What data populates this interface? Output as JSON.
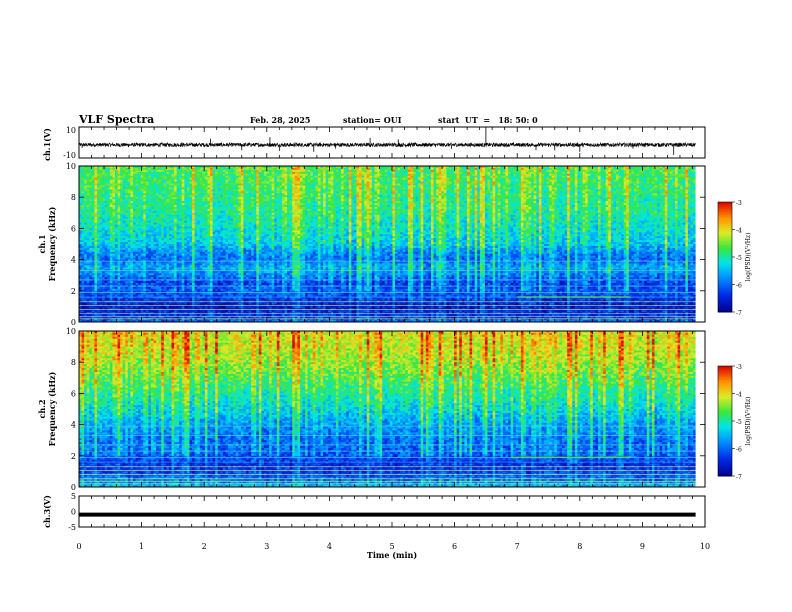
{
  "header": {
    "title": "VLF Spectra",
    "date": "Feb. 28, 2025",
    "station": "station= OUI",
    "start_ut": "start  UT  =   18: 50: 0"
  },
  "chart_data": [
    {
      "type": "line",
      "panel": "ch.1 waveform",
      "ylabel": "ch.1(V)",
      "yticks": [
        "10",
        "-10"
      ],
      "ylim": [
        -10,
        10
      ],
      "x_range_min": [
        0,
        9.85
      ],
      "series": [
        {
          "values": [
            -1.5
          ],
          "noise_amplitude_V": 2.5
        }
      ],
      "spikes": [
        {
          "t": 0.05,
          "v": -3.5
        },
        {
          "t": 2.1,
          "v": 2.5
        },
        {
          "t": 2.6,
          "v": -5
        },
        {
          "t": 3.05,
          "v": 3.5
        },
        {
          "t": 3.2,
          "v": -5.5
        },
        {
          "t": 3.75,
          "v": -6
        },
        {
          "t": 4.1,
          "v": -4
        },
        {
          "t": 4.65,
          "v": 3
        },
        {
          "t": 5.1,
          "v": 2
        },
        {
          "t": 5.95,
          "v": -4
        },
        {
          "t": 6.5,
          "v": 10
        },
        {
          "t": 7.3,
          "v": -5
        },
        {
          "t": 7.6,
          "v": -5
        },
        {
          "t": 8.0,
          "v": -6
        },
        {
          "t": 8.85,
          "v": -4
        },
        {
          "t": 9.5,
          "v": -8
        }
      ]
    },
    {
      "type": "heatmap",
      "panel": "ch.1 spectrogram",
      "ylabel_top": "ch.1",
      "ylabel": "Frequency (kHz)",
      "yticks": [
        "0",
        "2",
        "4",
        "6",
        "8",
        "10"
      ],
      "ylim_kHz": [
        0,
        10
      ],
      "x_range_min": [
        0,
        9.85
      ],
      "log_psd_profile": [
        [
          0,
          -6.0
        ],
        [
          0.3,
          -6.3
        ],
        [
          0.6,
          -6.4
        ],
        [
          1.0,
          -6.6
        ],
        [
          1.5,
          -6.3
        ],
        [
          2.0,
          -6.1
        ],
        [
          2.5,
          -6.3
        ],
        [
          3.0,
          -5.9
        ],
        [
          3.5,
          -5.6
        ],
        [
          4.0,
          -6.0
        ],
        [
          4.5,
          -5.8
        ],
        [
          5.0,
          -5.4
        ],
        [
          6.0,
          -5.2
        ],
        [
          7.0,
          -5.0
        ],
        [
          8.0,
          -4.9
        ],
        [
          9.0,
          -4.8
        ],
        [
          10.0,
          -4.7
        ]
      ],
      "colorbar": {
        "label": "log(PSD)(V²/Hz)",
        "ticks": [
          "-3",
          "-4",
          "-5",
          "-6",
          "-7"
        ],
        "range": [
          -7,
          -3
        ]
      }
    },
    {
      "type": "heatmap",
      "panel": "ch.2 spectrogram",
      "ylabel_top": "ch.2",
      "ylabel": "Frequency (kHz)",
      "yticks": [
        "0",
        "2",
        "4",
        "6",
        "8",
        "10"
      ],
      "ylim_kHz": [
        0,
        10
      ],
      "x_range_min": [
        0,
        9.85
      ],
      "log_psd_profile": [
        [
          0,
          -5.5
        ],
        [
          0.3,
          -5.8
        ],
        [
          0.6,
          -6.0
        ],
        [
          1.0,
          -6.3
        ],
        [
          1.5,
          -6.4
        ],
        [
          2.0,
          -6.1
        ],
        [
          2.5,
          -6.0
        ],
        [
          3.0,
          -6.0
        ],
        [
          3.5,
          -5.8
        ],
        [
          4.0,
          -5.7
        ],
        [
          4.5,
          -5.5
        ],
        [
          5.0,
          -5.3
        ],
        [
          6.0,
          -5.0
        ],
        [
          7.0,
          -4.7
        ],
        [
          8.0,
          -4.4
        ],
        [
          9.0,
          -4.2
        ],
        [
          10.0,
          -4.1
        ]
      ],
      "colorbar": {
        "label": "log(PSD)(V²/Hz)",
        "ticks": [
          "-3",
          "-4",
          "-5",
          "-6",
          "-7"
        ],
        "range": [
          -7,
          -3
        ]
      }
    },
    {
      "type": "line",
      "panel": "ch.3 waveform",
      "ylabel": "ch.3(V)",
      "yticks": [
        "5",
        "0",
        "-5"
      ],
      "ylim": [
        -5,
        5
      ],
      "x_range_min": [
        0,
        9.85
      ],
      "series": [
        {
          "values": [
            -1.0
          ]
        }
      ]
    }
  ],
  "xaxis": {
    "label": "Time (min)",
    "ticks": [
      "0",
      "1",
      "2",
      "3",
      "4",
      "5",
      "6",
      "7",
      "8",
      "9",
      "10"
    ],
    "xlim": [
      0,
      10
    ]
  }
}
